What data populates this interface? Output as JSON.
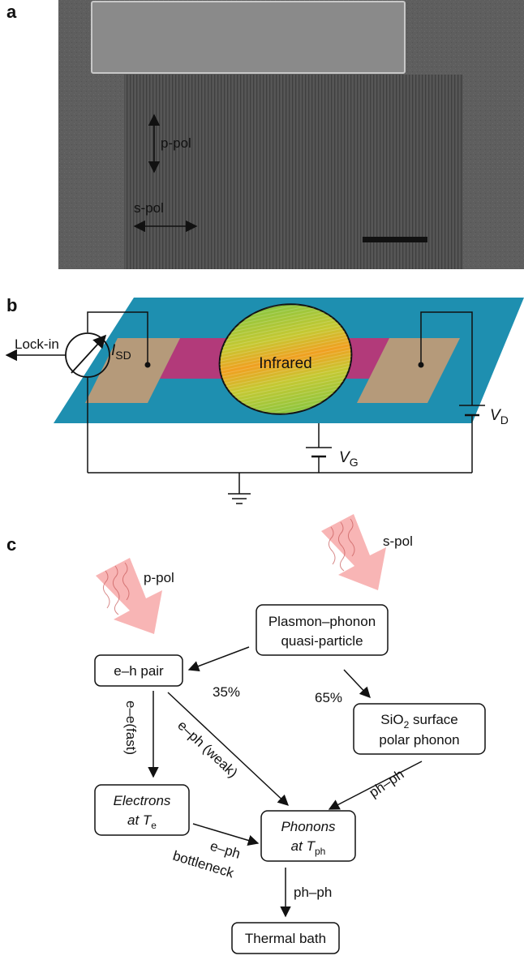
{
  "panel_a": {
    "letter": "a",
    "p_pol": "p-pol",
    "s_pol": "s-pol"
  },
  "panel_b": {
    "letter": "b",
    "lockin": "Lock-in",
    "isd_main": "I",
    "isd_sub": "SD",
    "infrared": "Infrared",
    "vd_main": "V",
    "vd_sub": "D",
    "vg_main": "V",
    "vg_sub": "G"
  },
  "panel_c": {
    "letter": "c",
    "s_pol": "s-pol",
    "p_pol": "p-pol",
    "plasmon_line1": "Plasmon–phonon",
    "plasmon_line2": "quasi-particle",
    "eh_pair": "e–h pair",
    "pct35": "35%",
    "pct65": "65%",
    "sio2_main": "SiO",
    "sio2_sub": "2",
    "sio2_rest": " surface",
    "sio2_line2": "polar phonon",
    "ee_fast": "e–e(fast)",
    "eph_weak": "e–ph (weak)",
    "phph_right": "ph–ph",
    "electrons_line1": "Electrons",
    "electrons_at": "at ",
    "electrons_T": "T",
    "electrons_sub": "e",
    "phonons_line1": "Phonons",
    "phonons_at": "at ",
    "phonons_T": "T",
    "phonons_sub": "ph",
    "eph_line1": "e–ph",
    "eph_line2": "bottleneck",
    "phph_down": "ph–ph",
    "thermal_bath": "Thermal bath"
  },
  "colors": {
    "sem_gray": "#5a5a5a",
    "substrate": "#1e8fb0",
    "contact": "#b59a7a",
    "channel": "#b23a7a",
    "spot_green": "#8cc63f",
    "spot_orange": "#f0a020",
    "light_arrow": "#f7a8a8"
  }
}
